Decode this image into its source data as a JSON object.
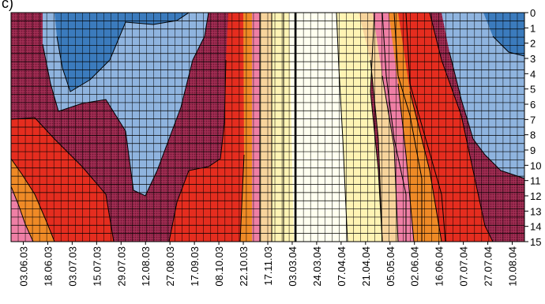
{
  "panel_label": "c)",
  "chart_data": {
    "type": "heatmap",
    "subtype": "filled contour (depth vs. date)",
    "y_ticks": [
      "0",
      "1",
      "2",
      "3",
      "4",
      "5",
      "6",
      "7",
      "8",
      "9",
      "10",
      "11",
      "12",
      "13",
      "14",
      "15"
    ],
    "y_range": [
      0,
      15
    ],
    "y_inverted": true,
    "y_axis_side": "right",
    "x_ticks": [
      "03.06.03",
      "18.06.03",
      "03.07.03",
      "15.07.03",
      "29.07.03",
      "12.08.03",
      "27.08.03",
      "17.09.03",
      "08.10.03",
      "22.10.03",
      "17.11.03",
      "03.03.04",
      "24.03.04",
      "07.04.04",
      "21.04.04",
      "05.05.04",
      "02.06.04",
      "16.06.04",
      "07.07.04",
      "27.07.04",
      "10.08.04"
    ],
    "grid": true,
    "levels_bottom_to_top": [
      {
        "level": 0,
        "color": "#fffff0"
      },
      {
        "level": 1,
        "color": "#fff4b4"
      },
      {
        "level": 2,
        "color": "#f7d49c"
      },
      {
        "level": 3,
        "color": "#ef7fa5"
      },
      {
        "level": 4,
        "color": "#ef8a26"
      },
      {
        "level": 5,
        "color": "#e52d1f"
      },
      {
        "level": 6,
        "color": "#96244a"
      },
      {
        "level": 7,
        "color": "#8fb4df"
      },
      {
        "level": 8,
        "color": "#3b7bbd"
      }
    ],
    "column_profiles": [
      {
        "date": "03.06.03",
        "top": "purple",
        "bottom": "pink/orange"
      },
      {
        "date": "12.08.03",
        "top": "dark blue",
        "bottom": "purple"
      },
      {
        "date": "03.03.04",
        "top": "white",
        "bottom": "white"
      },
      {
        "date": "02.06.04",
        "top": "red",
        "bottom": "orange/purple"
      },
      {
        "date": "10.08.04",
        "top": "dark blue",
        "bottom": "purple"
      }
    ]
  }
}
